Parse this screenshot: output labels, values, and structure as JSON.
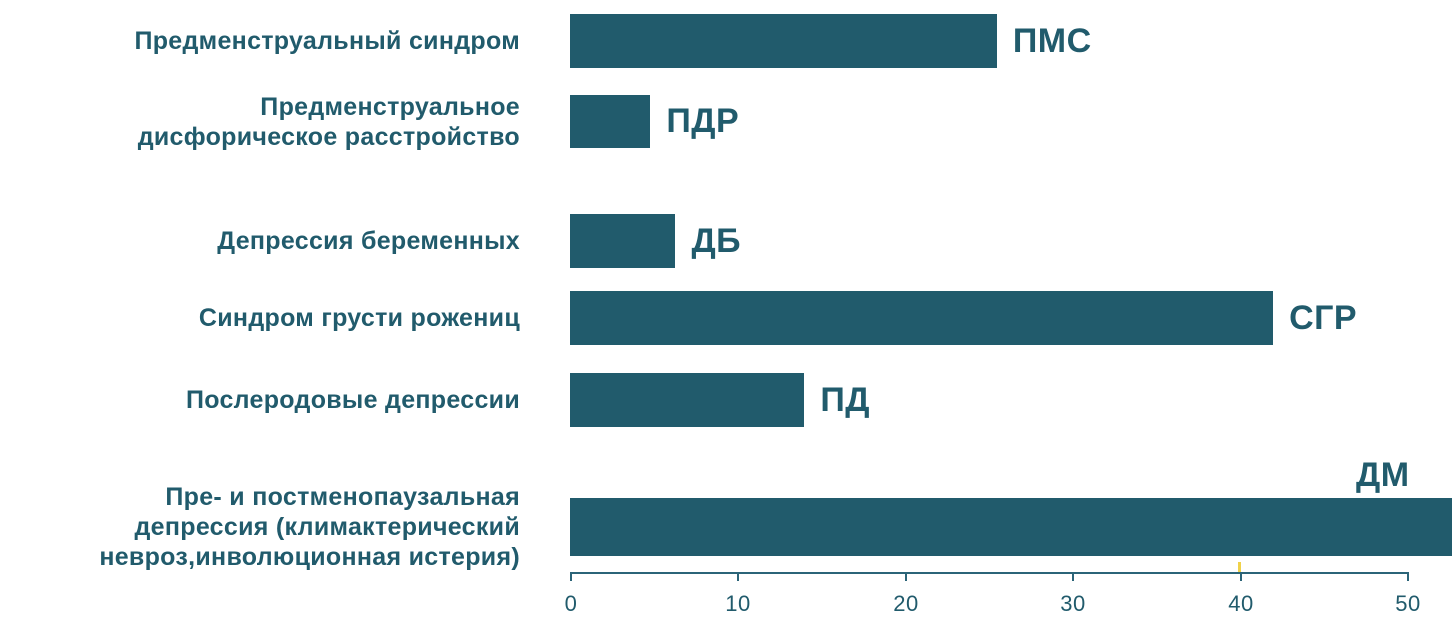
{
  "chart_data": {
    "type": "bar",
    "orientation": "horizontal",
    "title": "",
    "xlabel": "",
    "ylabel": "",
    "xlim": [
      0,
      50
    ],
    "x_ticks": [
      0,
      10,
      20,
      30,
      40,
      50
    ],
    "grid": false,
    "legend": false,
    "bar_color": "#215b6c",
    "axis_color": "#2b6478",
    "marker_color": "#f0d24a",
    "background": "#ffffff",
    "series": [
      {
        "label": "Предменструальный синдром",
        "code": "ПМС",
        "value": 25.5
      },
      {
        "label": "Предменструальное\nдисфорическое расстройство",
        "code": "ПДР",
        "value": 4.8
      },
      {
        "label": "Депрессия беременных",
        "code": "ДБ",
        "value": 6.3
      },
      {
        "label": "Синдром грусти рожениц",
        "code": "СГР",
        "value": 42
      },
      {
        "label": "Послеродовые депрессии",
        "code": "ПД",
        "value": 14
      },
      {
        "label": "Пре- и постменопаузальная\nдепрессия (климактерический\nневроз,инволюционная истерия)",
        "code": "ДМ",
        "value": 52.7
      }
    ]
  }
}
